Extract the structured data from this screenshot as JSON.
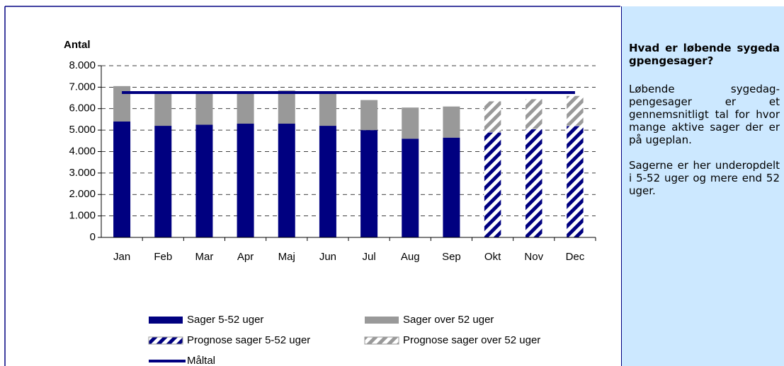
{
  "chart_data": {
    "type": "bar",
    "y_label": "Antal",
    "categories": [
      "Jan",
      "Feb",
      "Mar",
      "Apr",
      "Maj",
      "Jun",
      "Jul",
      "Aug",
      "Sep",
      "Okt",
      "Nov",
      "Dec"
    ],
    "series": [
      {
        "name": "Sager 5-52 uger",
        "color": "#000080",
        "hatch": false,
        "values": [
          5400,
          5200,
          5250,
          5300,
          5300,
          5200,
          5000,
          4600,
          4650,
          null,
          null,
          null
        ]
      },
      {
        "name": "Sager over 52 uger",
        "color": "#999999",
        "hatch": false,
        "values": [
          1650,
          1550,
          1500,
          1450,
          1550,
          1550,
          1400,
          1450,
          1450,
          null,
          null,
          null
        ]
      },
      {
        "name": "Prognose sager 5-52 uger",
        "color": "#000080",
        "hatch": true,
        "values": [
          null,
          null,
          null,
          null,
          null,
          null,
          null,
          null,
          null,
          4900,
          5050,
          5200
        ]
      },
      {
        "name": "Prognose sager over 52 uger",
        "color": "#999999",
        "hatch": true,
        "values": [
          null,
          null,
          null,
          null,
          null,
          null,
          null,
          null,
          null,
          1450,
          1400,
          1400
        ]
      },
      {
        "name": "Måltal",
        "color": "#000080",
        "type": "line",
        "values": [
          6750,
          6750,
          6750,
          6750,
          6750,
          6750,
          6750,
          6750,
          6750,
          6750,
          6750,
          6750
        ]
      }
    ],
    "ylim": [
      0,
      8000
    ],
    "yticks": [
      0,
      {
        "value": 1000,
        "label": "1.000"
      },
      {
        "value": 2000,
        "label": "2.000"
      },
      {
        "value": 3000,
        "label": "3.000"
      },
      {
        "value": 4000,
        "label": "4.000"
      },
      {
        "value": 5000,
        "label": "5.000"
      },
      {
        "value": 6000,
        "label": "6.000"
      },
      {
        "value": 7000,
        "label": "7.000"
      },
      {
        "value": 8000,
        "label": "8.000"
      }
    ],
    "grid": true
  },
  "sidebar": {
    "title": "Hvad er løbende sygedagpengesager?",
    "paragraphs": [
      "Løbende sygedag-pengesager er et gennemsnitligt tal for hvor mange aktive sager der er på ugeplan.",
      "Sagerne er her underopdelt i 5-52 uger og mere end 52 uger."
    ]
  }
}
